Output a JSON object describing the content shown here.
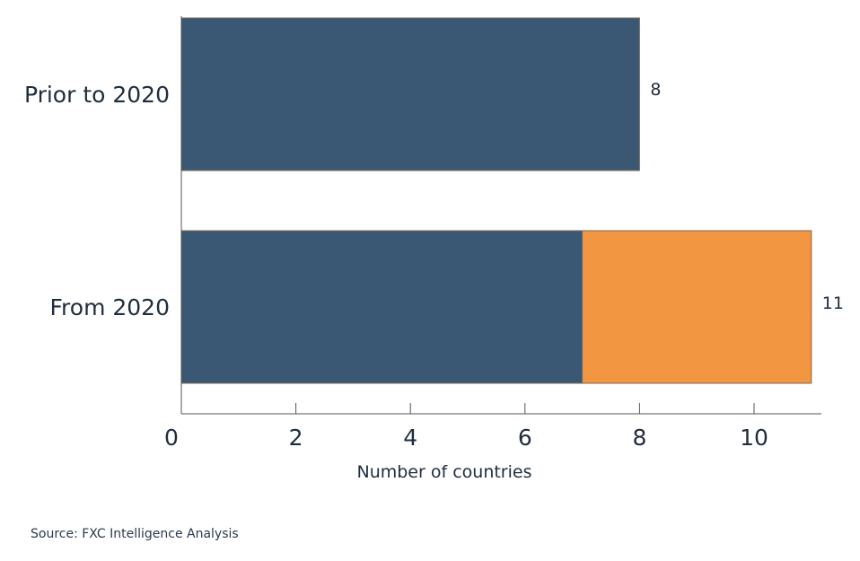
{
  "chart_data": {
    "type": "bar",
    "orientation": "horizontal",
    "stacked": true,
    "categories": [
      "Prior to 2020",
      "From 2020"
    ],
    "series": [
      {
        "values": [
          8,
          7
        ],
        "color": "#3a5874"
      },
      {
        "values": [
          0,
          4
        ],
        "color": "#f39641"
      }
    ],
    "totals": [
      8,
      11
    ],
    "title": "",
    "xlabel": "Number of countries",
    "ylabel": "",
    "xlim": [
      0,
      11.2
    ],
    "xticks": [
      0,
      2,
      4,
      6,
      8,
      10
    ],
    "grid": false,
    "legend": "none"
  },
  "footer": {
    "source": "Source: FXC Intelligence Analysis"
  },
  "colors": {
    "bar_primary": "#3a5874",
    "bar_secondary": "#f39641",
    "axis": "#555555",
    "text": "#1f2d3d"
  }
}
